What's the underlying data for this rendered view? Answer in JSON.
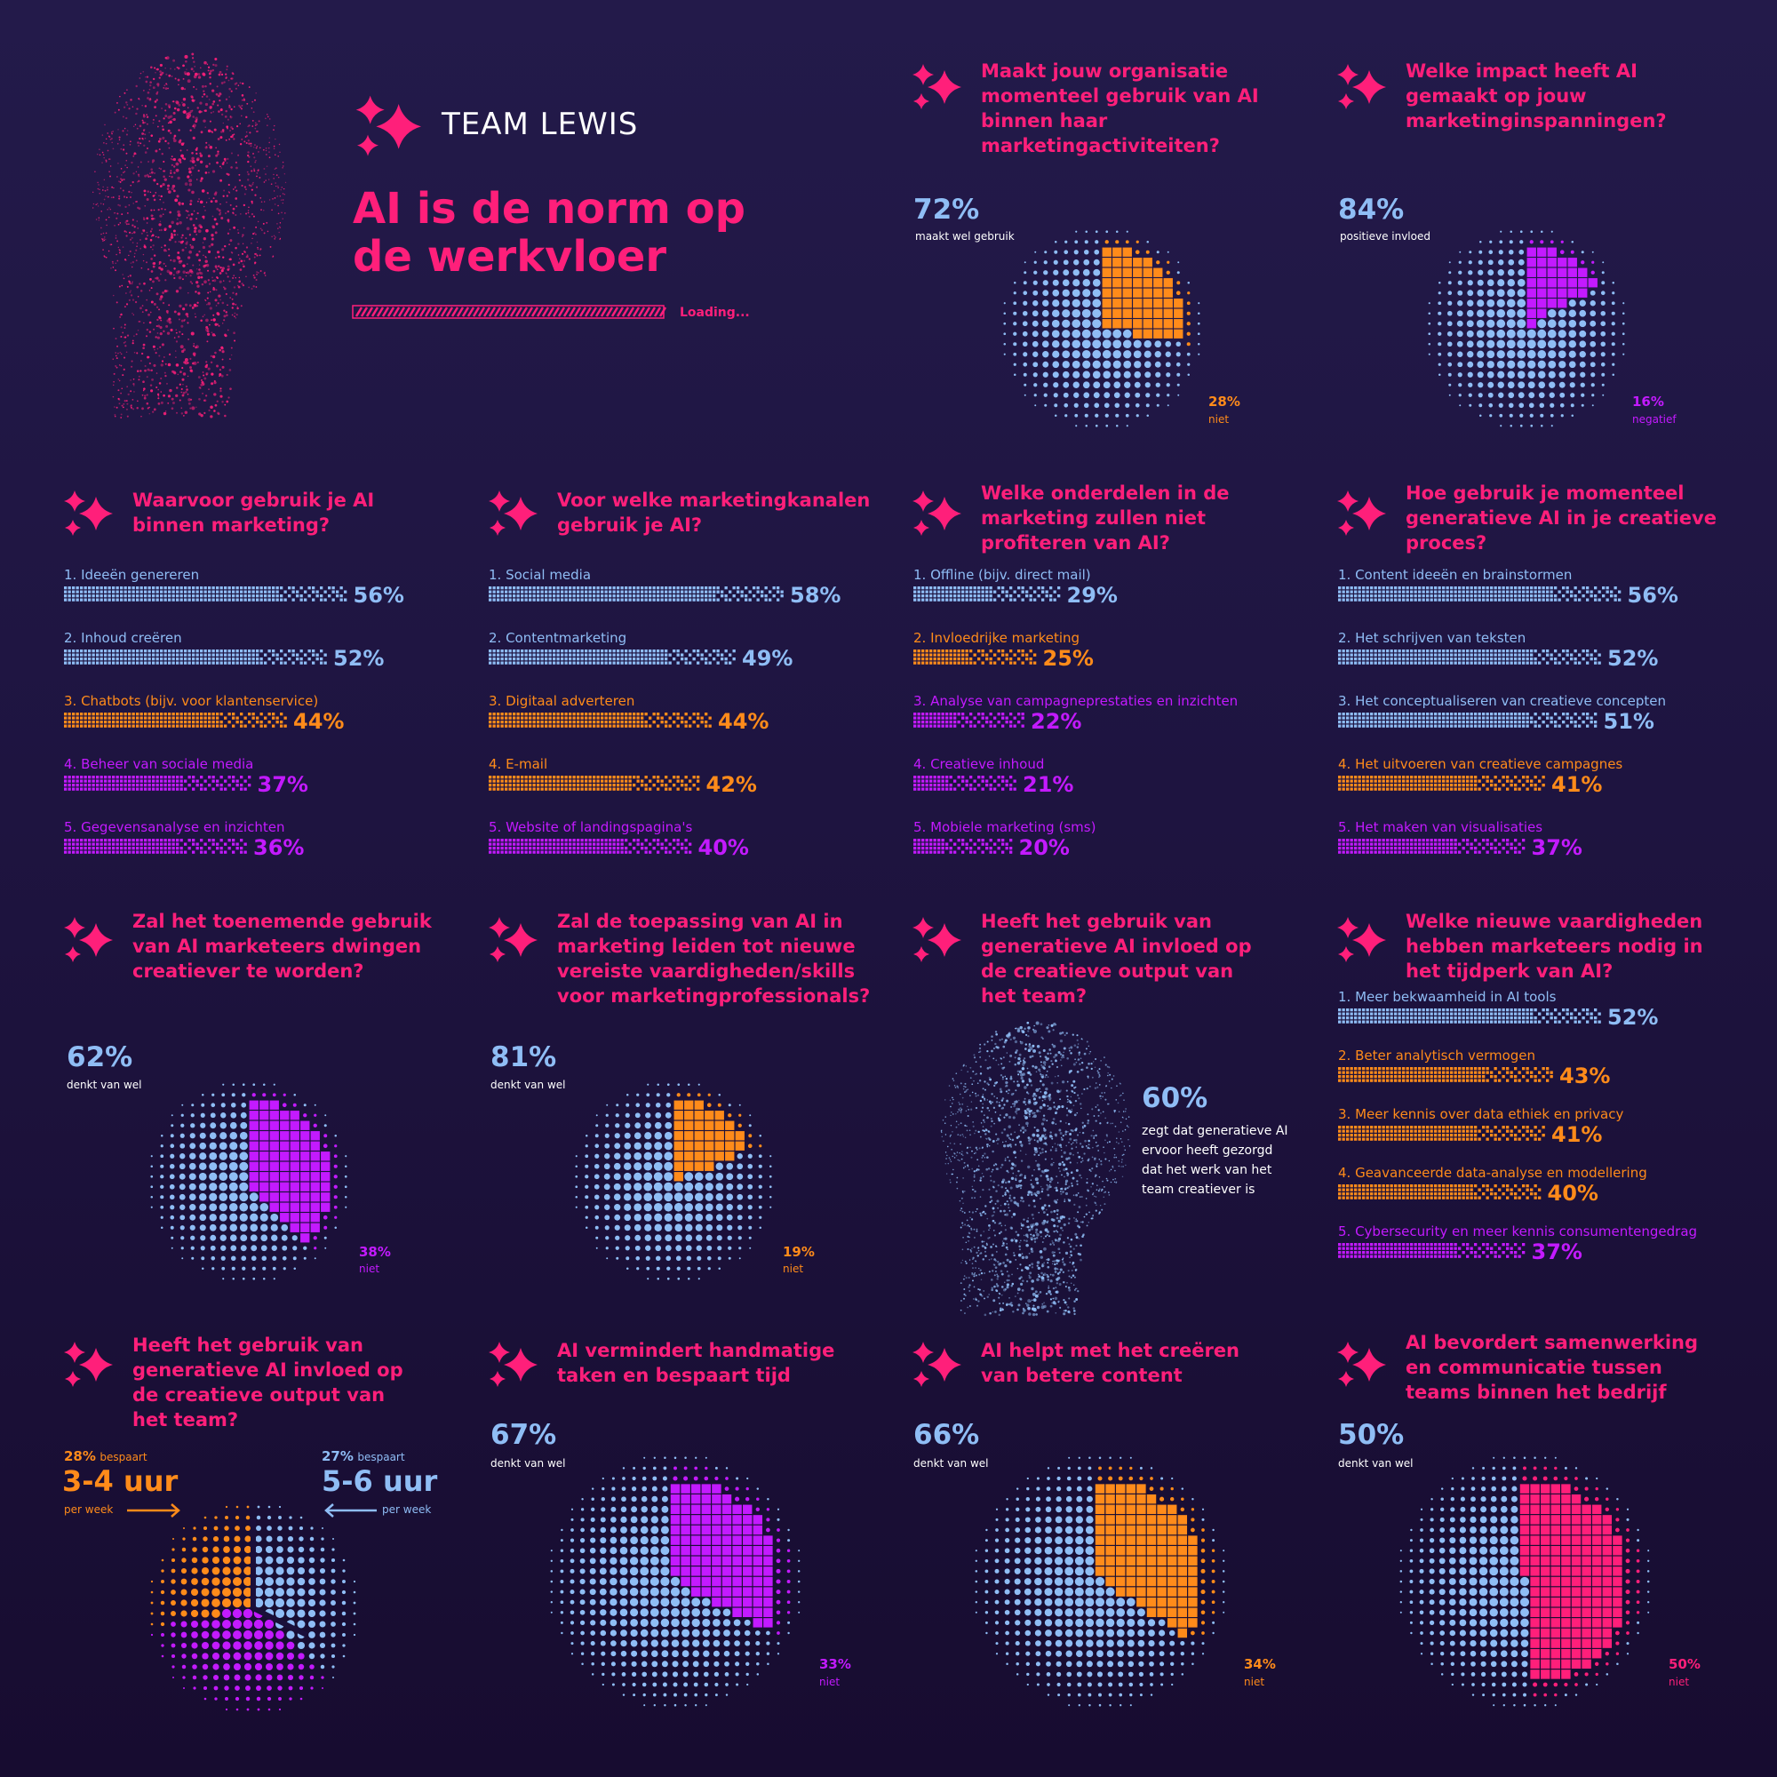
{
  "header": {
    "logo": "TEAM LEWIS",
    "title_line1": "AI is de norm op",
    "title_line2": "de werkvloer",
    "loading": "Loading..."
  },
  "colors": {
    "blue": "#8fbdf5",
    "orange": "#ff8b1a",
    "purple": "#c31aff",
    "pink": "#ff1f7a"
  },
  "chart_data": [
    {
      "id": "q1",
      "type": "pie",
      "title": "Maakt jouw organisatie momenteel gebruik van AI binnen haar marketingactiviteiten?",
      "slices": [
        {
          "label": "maakt wel gebruik",
          "value": 72,
          "display": "72%",
          "color": "blue"
        },
        {
          "label": "niet",
          "value": 28,
          "display": "28%",
          "color": "orange"
        }
      ]
    },
    {
      "id": "q2",
      "type": "pie",
      "title": "Welke impact heeft AI gemaakt op jouw marketinginspanningen?",
      "slices": [
        {
          "label": "positieve invloed",
          "value": 84,
          "display": "84%",
          "color": "blue"
        },
        {
          "label": "negatief",
          "value": 16,
          "display": "16%",
          "color": "purple"
        }
      ]
    },
    {
      "id": "b1",
      "type": "bar",
      "title": "Waarvoor gebruik je AI binnen marketing?",
      "bars": [
        {
          "label": "1. Ideeën genereren",
          "value": 56,
          "display": "56%",
          "color": "blue"
        },
        {
          "label": "2. Inhoud creëren",
          "value": 52,
          "display": "52%",
          "color": "blue"
        },
        {
          "label": "3. Chatbots (bijv. voor klantenservice)",
          "value": 44,
          "display": "44%",
          "color": "orange"
        },
        {
          "label": "4. Beheer van sociale media",
          "value": 37,
          "display": "37%",
          "color": "purple"
        },
        {
          "label": "5. Gegevensanalyse en inzichten",
          "value": 36,
          "display": "36%",
          "color": "purple"
        }
      ]
    },
    {
      "id": "b2",
      "type": "bar",
      "title": "Voor welke marketingkanalen gebruik je AI?",
      "bars": [
        {
          "label": "1. Social media",
          "value": 58,
          "display": "58%",
          "color": "blue"
        },
        {
          "label": "2. Contentmarketing",
          "value": 49,
          "display": "49%",
          "color": "blue"
        },
        {
          "label": "3. Digitaal adverteren",
          "value": 44,
          "display": "44%",
          "color": "orange"
        },
        {
          "label": "4. E-mail",
          "value": 42,
          "display": "42%",
          "color": "orange"
        },
        {
          "label": "5. Website of landingspagina's",
          "value": 40,
          "display": "40%",
          "color": "purple"
        }
      ]
    },
    {
      "id": "b3",
      "type": "bar",
      "title": "Welke onderdelen in de marketing zullen niet profiteren van AI?",
      "bars": [
        {
          "label": "1. Offline (bijv. direct mail)",
          "value": 29,
          "display": "29%",
          "color": "blue"
        },
        {
          "label": "2. Invloedrijke marketing",
          "value": 25,
          "display": "25%",
          "color": "orange"
        },
        {
          "label": "3. Analyse van campagneprestaties en inzichten",
          "value": 22,
          "display": "22%",
          "color": "purple"
        },
        {
          "label": "4. Creatieve inhoud",
          "value": 21,
          "display": "21%",
          "color": "purple"
        },
        {
          "label": "5. Mobiele marketing (sms)",
          "value": 20,
          "display": "20%",
          "color": "purple"
        }
      ]
    },
    {
      "id": "b4",
      "type": "bar",
      "title": "Hoe gebruik je momenteel generatieve AI in je creatieve proces?",
      "bars": [
        {
          "label": "1. Content ideeën en brainstormen",
          "value": 56,
          "display": "56%",
          "color": "blue"
        },
        {
          "label": "2. Het schrijven van teksten",
          "value": 52,
          "display": "52%",
          "color": "blue"
        },
        {
          "label": "3. Het conceptualiseren van creatieve concepten",
          "value": 51,
          "display": "51%",
          "color": "blue"
        },
        {
          "label": "4. Het uitvoeren van creatieve campagnes",
          "value": 41,
          "display": "41%",
          "color": "orange"
        },
        {
          "label": "5. Het maken van visualisaties",
          "value": 37,
          "display": "37%",
          "color": "purple"
        }
      ]
    },
    {
      "id": "q3",
      "type": "pie",
      "title": "Zal het toenemende gebruik van AI marketeers dwingen creatiever te worden?",
      "slices": [
        {
          "label": "denkt van wel",
          "value": 62,
          "display": "62%",
          "color": "blue"
        },
        {
          "label": "niet",
          "value": 38,
          "display": "38%",
          "color": "purple"
        }
      ]
    },
    {
      "id": "q4",
      "type": "pie",
      "title": "Zal de toepassing van AI in marketing leiden tot nieuwe vereiste vaardigheden/skills voor marketingprofessionals?",
      "slices": [
        {
          "label": "denkt van wel",
          "value": 81,
          "display": "81%",
          "color": "blue"
        },
        {
          "label": "niet",
          "value": 19,
          "display": "19%",
          "color": "orange"
        }
      ]
    },
    {
      "id": "q5",
      "type": "table",
      "title": "Heeft het gebruik van generatieve AI invloed op de creatieve output van het team?",
      "value": 60,
      "display": "60%",
      "text": "zegt dat generatieve AI ervoor heeft gezorgd dat het werk van het team creatiever is"
    },
    {
      "id": "b5",
      "type": "bar",
      "title": "Welke nieuwe vaardigheden hebben marketeers nodig in het tijdperk van AI?",
      "bars": [
        {
          "label": "1. Meer bekwaamheid in AI tools",
          "value": 52,
          "display": "52%",
          "color": "blue"
        },
        {
          "label": "2. Beter analytisch vermogen",
          "value": 43,
          "display": "43%",
          "color": "orange"
        },
        {
          "label": "3. Meer kennis over data ethiek en privacy",
          "value": 41,
          "display": "41%",
          "color": "orange"
        },
        {
          "label": "4. Geavanceerde data-analyse en modellering",
          "value": 40,
          "display": "40%",
          "color": "orange"
        },
        {
          "label": "5. Cybersecurity en meer kennis consumentengedrag",
          "value": 37,
          "display": "37%",
          "color": "purple"
        }
      ]
    },
    {
      "id": "q6",
      "type": "pie",
      "title": "Heeft het gebruik van generatieve AI invloed op de creatieve output van het team?",
      "slices": [
        {
          "label": "bespaart",
          "value": 28,
          "display": "28%",
          "hours": "3-4 uur",
          "per": "per week",
          "color": "orange"
        },
        {
          "label": "bespaart",
          "value": 27,
          "display": "27%",
          "hours": "5-6 uur",
          "per": "per week",
          "color": "blue"
        }
      ]
    },
    {
      "id": "q7",
      "type": "pie",
      "title": "AI vermindert handmatige taken en bespaart tijd",
      "slices": [
        {
          "label": "denkt van wel",
          "value": 67,
          "display": "67%",
          "color": "blue"
        },
        {
          "label": "niet",
          "value": 33,
          "display": "33%",
          "color": "purple"
        }
      ]
    },
    {
      "id": "q8",
      "type": "pie",
      "title": "AI helpt met het creëren van betere content",
      "slices": [
        {
          "label": "denkt van wel",
          "value": 66,
          "display": "66%",
          "color": "blue"
        },
        {
          "label": "niet",
          "value": 34,
          "display": "34%",
          "color": "orange"
        }
      ]
    },
    {
      "id": "q9",
      "type": "pie",
      "title": "AI bevordert samenwerking en communicatie tussen teams binnen het bedrijf",
      "slices": [
        {
          "label": "denkt van wel",
          "value": 50,
          "display": "50%",
          "color": "blue"
        },
        {
          "label": "niet",
          "value": 50,
          "display": "50%",
          "color": "pink"
        }
      ]
    }
  ]
}
